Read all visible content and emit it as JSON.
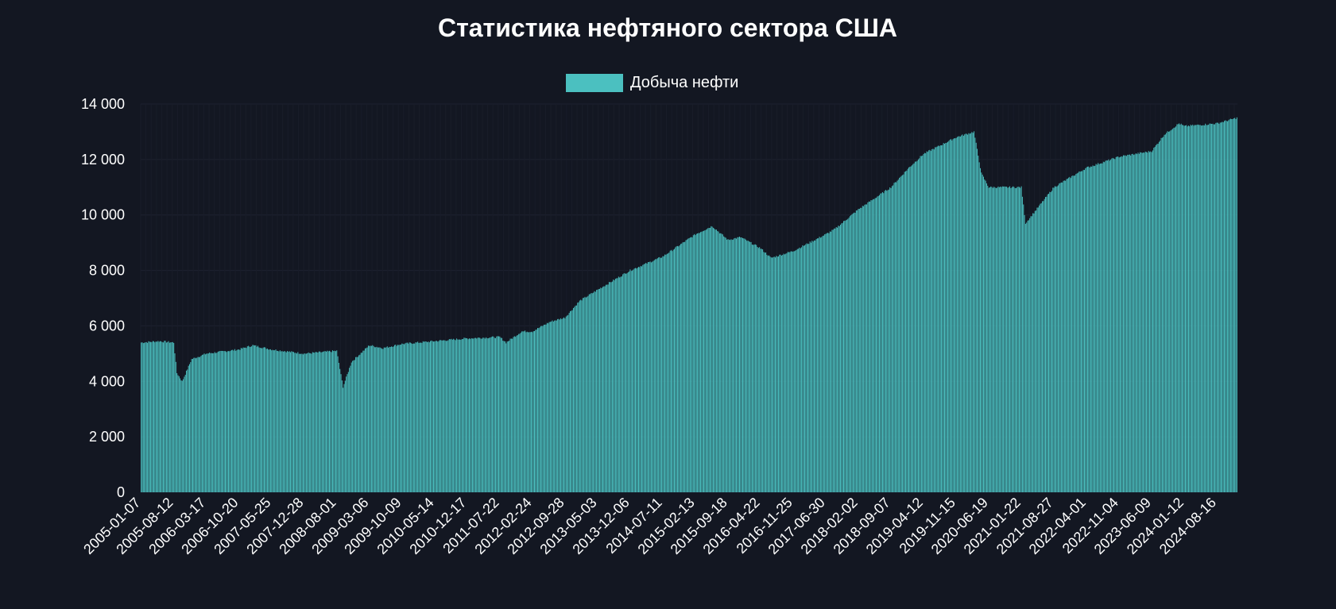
{
  "chart_data": {
    "type": "bar",
    "title": "Статистика нефтяного сектора США",
    "xlabel": "",
    "ylabel": "",
    "ylim": [
      0,
      14000
    ],
    "yticks": [
      0,
      2000,
      4000,
      6000,
      8000,
      10000,
      12000,
      14000
    ],
    "ytick_labels": [
      "0",
      "2 000",
      "4 000",
      "6 000",
      "8 000",
      "10 000",
      "12 000",
      "14 000"
    ],
    "x_start": "2005-01-07",
    "x_end": "2024-12-27",
    "x_frequency": "weekly",
    "xtick_labels": [
      "2005-01-07",
      "2005-08-12",
      "2006-03-17",
      "2006-10-20",
      "2007-05-25",
      "2007-12-28",
      "2008-08-01",
      "2009-03-06",
      "2009-10-09",
      "2010-05-14",
      "2010-12-17",
      "2011-07-22",
      "2012-02-24",
      "2012-09-28",
      "2013-05-03",
      "2013-12-06",
      "2014-07-11",
      "2015-02-13",
      "2015-09-18",
      "2016-04-22",
      "2016-11-25",
      "2017-06-30",
      "2018-02-02",
      "2018-09-07",
      "2019-04-12",
      "2019-11-15",
      "2020-06-19",
      "2021-01-22",
      "2021-08-27",
      "2022-04-01",
      "2022-11-04",
      "2023-06-09",
      "2024-01-12",
      "2024-08-16"
    ],
    "grid": true,
    "legend_position": "top-center",
    "series": [
      {
        "name": "Добыча нефти",
        "color": "#4bc0c0",
        "values_approx_by_date": [
          [
            "2005-01-07",
            5400
          ],
          [
            "2005-05-06",
            5450
          ],
          [
            "2005-08-12",
            5400
          ],
          [
            "2005-09-02",
            4300
          ],
          [
            "2005-10-07",
            4000
          ],
          [
            "2005-12-09",
            4800
          ],
          [
            "2006-03-17",
            5000
          ],
          [
            "2006-10-20",
            5150
          ],
          [
            "2007-01-19",
            5300
          ],
          [
            "2007-05-25",
            5150
          ],
          [
            "2007-12-28",
            5000
          ],
          [
            "2008-08-01",
            5100
          ],
          [
            "2008-09-12",
            3800
          ],
          [
            "2008-11-07",
            4700
          ],
          [
            "2009-03-06",
            5300
          ],
          [
            "2009-06-05",
            5200
          ],
          [
            "2009-10-09",
            5350
          ],
          [
            "2010-05-14",
            5450
          ],
          [
            "2010-12-17",
            5550
          ],
          [
            "2011-07-22",
            5600
          ],
          [
            "2011-09-02",
            5400
          ],
          [
            "2011-12-16",
            5800
          ],
          [
            "2012-02-24",
            5800
          ],
          [
            "2012-06-22",
            6150
          ],
          [
            "2012-09-28",
            6300
          ],
          [
            "2013-01-04",
            6900
          ],
          [
            "2013-05-03",
            7300
          ],
          [
            "2013-12-06",
            8000
          ],
          [
            "2014-07-11",
            8500
          ],
          [
            "2015-02-13",
            9300
          ],
          [
            "2015-06-05",
            9600
          ],
          [
            "2015-09-18",
            9100
          ],
          [
            "2015-12-11",
            9200
          ],
          [
            "2016-04-22",
            8800
          ],
          [
            "2016-07-01",
            8450
          ],
          [
            "2016-11-25",
            8700
          ],
          [
            "2017-06-30",
            9300
          ],
          [
            "2017-09-01",
            9500
          ],
          [
            "2018-02-02",
            10200
          ],
          [
            "2018-09-07",
            11000
          ],
          [
            "2019-01-04",
            11700
          ],
          [
            "2019-04-12",
            12200
          ],
          [
            "2019-11-15",
            12800
          ],
          [
            "2020-03-13",
            13000
          ],
          [
            "2020-05-01",
            11500
          ],
          [
            "2020-06-19",
            11000
          ],
          [
            "2021-01-22",
            11000
          ],
          [
            "2021-02-19",
            9700
          ],
          [
            "2021-08-27",
            11000
          ],
          [
            "2022-04-01",
            11700
          ],
          [
            "2022-11-04",
            12100
          ],
          [
            "2023-06-09",
            12300
          ],
          [
            "2023-09-01",
            12900
          ],
          [
            "2023-12-08",
            13300
          ],
          [
            "2024-01-12",
            13200
          ],
          [
            "2024-08-16",
            13300
          ],
          [
            "2024-12-27",
            13500
          ]
        ]
      }
    ]
  }
}
